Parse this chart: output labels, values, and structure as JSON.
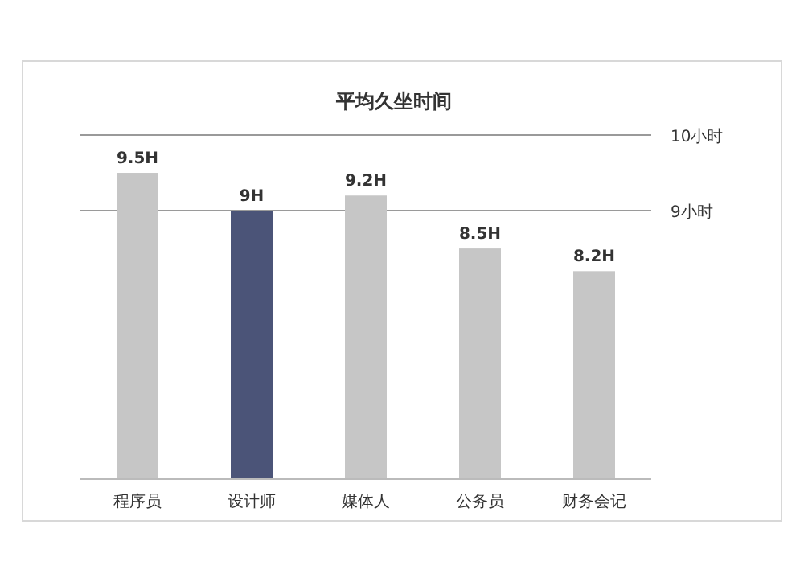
{
  "chart_data": {
    "type": "bar",
    "title": "平均久坐时间",
    "categories": [
      "程序员",
      "设计师",
      "媒体人",
      "公务员",
      "财务会记"
    ],
    "values": [
      9.5,
      9,
      9.2,
      8.5,
      8.2
    ],
    "colors": [
      "#c6c6c6",
      "#4b5478",
      "#c6c6c6",
      "#c6c6c6",
      "#c6c6c6"
    ],
    "value_labels": [
      "9.5H",
      "9H",
      "9.2H",
      "8.5H",
      "8.2H"
    ],
    "ylim": [
      5.45,
      10
    ],
    "tick_labels": "x",
    "ref_lines": [
      {
        "axis": "y",
        "value": 10,
        "label": "10小时",
        "color": "#9a9a9a"
      },
      {
        "axis": "y",
        "value": 9,
        "label": "9小时",
        "color": "#9a9a9a"
      }
    ]
  }
}
